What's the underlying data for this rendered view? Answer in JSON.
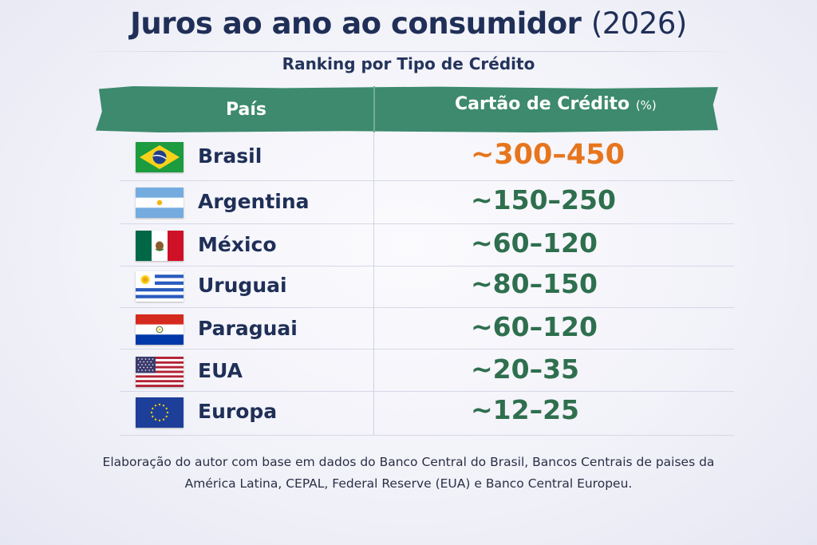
{
  "title": {
    "main": "Juros ao ano ao consumidor",
    "year": "(2026)"
  },
  "subtitle": "Ranking por Tipo de Crédito",
  "table": {
    "headers": {
      "country": "País",
      "rate": "Cartão de Crédito",
      "rate_unit": "(%)"
    },
    "rows": [
      {
        "country": "Brasil",
        "flag": "brazil-flag-icon",
        "rate": "~300–450",
        "highlight": true
      },
      {
        "country": "Argentina",
        "flag": "argentina-flag-icon",
        "rate": "~150–250"
      },
      {
        "country": "México",
        "flag": "mexico-flag-icon",
        "rate": "~60–120"
      },
      {
        "country": "Uruguai",
        "flag": "uruguay-flag-icon",
        "rate": "~80–150"
      },
      {
        "country": "Paraguai",
        "flag": "paraguay-flag-icon",
        "rate": "~60–120"
      },
      {
        "country": "EUA",
        "flag": "usa-flag-icon",
        "rate": "~20–35"
      },
      {
        "country": "Europa",
        "flag": "eu-flag-icon",
        "rate": "~12–25"
      }
    ]
  },
  "footnote": {
    "line1": "Elaboração do autor com base em dados do Banco Central do Brasil, Bancos Centrais de paises da",
    "line2": "América Latina, CEPAL, Federal Reserve (EUA) e Banco Central Europeu."
  },
  "colors": {
    "header_green": "#3d8a6e",
    "rate_green": "#2e6f4e",
    "rate_highlight": "#e7751d",
    "title_navy": "#1f2f57"
  }
}
